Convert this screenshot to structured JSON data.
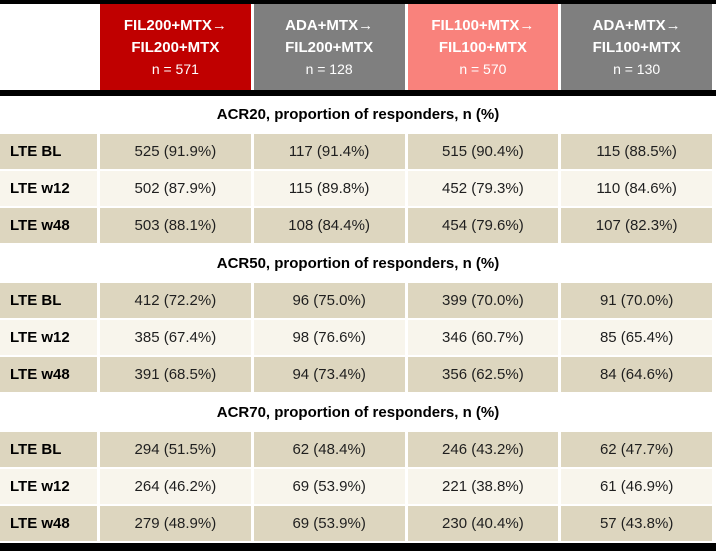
{
  "colors": {
    "black": "#000000",
    "red": "#C00000",
    "gray": "#7F7F7F",
    "salmon": "#F9827C",
    "tan": "#DDD6BF",
    "cream": "#F8F5EC",
    "text": "#1F1F1F"
  },
  "chart_data": {
    "type": "table",
    "header": {
      "columns": [
        {
          "line1": "FIL200+MTX→",
          "line2": "FIL200+MTX",
          "n": "n = 571",
          "color": "#C00000"
        },
        {
          "line1": "ADA+MTX→",
          "line2": "FIL200+MTX",
          "n": "n = 128",
          "color": "#7F7F7F"
        },
        {
          "line1": "FIL100+MTX→",
          "line2": "FIL100+MTX",
          "n": "n = 570",
          "color": "#F9827C"
        },
        {
          "line1": "ADA+MTX→",
          "line2": "FIL100+MTX",
          "n": "n = 130",
          "color": "#7F7F7F"
        }
      ]
    },
    "sections": [
      {
        "title": "ACR20, proportion of responders, n (%)",
        "rows": [
          {
            "label": "LTE BL",
            "values": [
              "525 (91.9%)",
              "117 (91.4%)",
              "515 (90.4%)",
              "115 (88.5%)"
            ]
          },
          {
            "label": "LTE w12",
            "values": [
              "502 (87.9%)",
              "115 (89.8%)",
              "452 (79.3%)",
              "110 (84.6%)"
            ]
          },
          {
            "label": "LTE w48",
            "values": [
              "503 (88.1%)",
              "108 (84.4%)",
              "454 (79.6%)",
              "107 (82.3%)"
            ]
          }
        ]
      },
      {
        "title": "ACR50, proportion of responders, n (%)",
        "rows": [
          {
            "label": "LTE BL",
            "values": [
              "412 (72.2%)",
              "96 (75.0%)",
              "399 (70.0%)",
              "91 (70.0%)"
            ]
          },
          {
            "label": "LTE w12",
            "values": [
              "385 (67.4%)",
              "98 (76.6%)",
              "346 (60.7%)",
              "85 (65.4%)"
            ]
          },
          {
            "label": "LTE w48",
            "values": [
              "391 (68.5%)",
              "94 (73.4%)",
              "356 (62.5%)",
              "84 (64.6%)"
            ]
          }
        ]
      },
      {
        "title": "ACR70, proportion of responders, n (%)",
        "rows": [
          {
            "label": "LTE BL",
            "values": [
              "294 (51.5%)",
              "62 (48.4%)",
              "246 (43.2%)",
              "62 (47.7%)"
            ]
          },
          {
            "label": "LTE w12",
            "values": [
              "264 (46.2%)",
              "69 (53.9%)",
              "221 (38.8%)",
              "61 (46.9%)"
            ]
          },
          {
            "label": "LTE w48",
            "values": [
              "279 (48.9%)",
              "69 (53.9%)",
              "230 (40.4%)",
              "57 (43.8%)"
            ]
          }
        ]
      }
    ]
  }
}
